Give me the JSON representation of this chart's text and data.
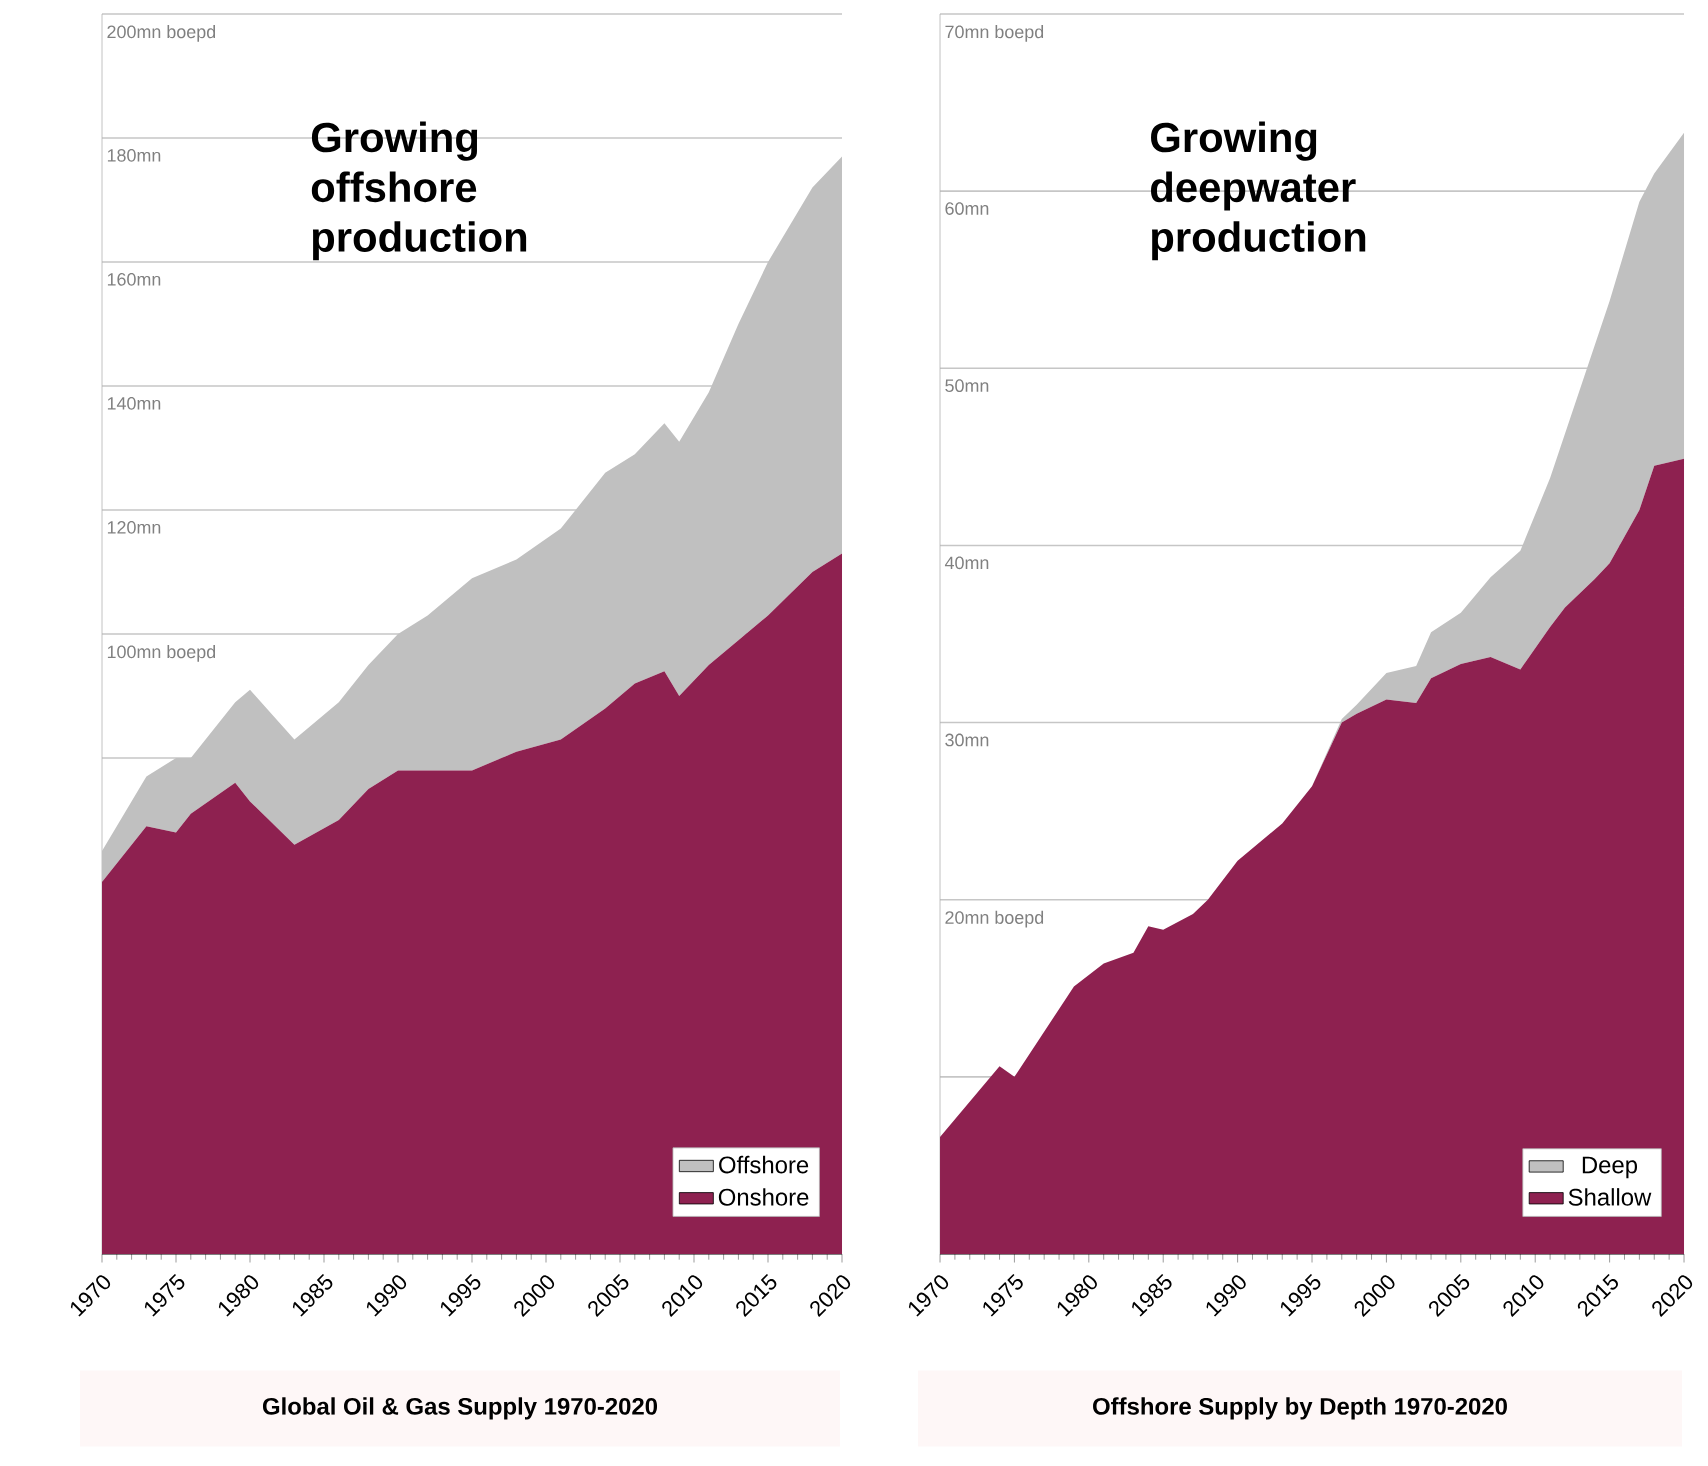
{
  "chart_data": [
    {
      "type": "area",
      "stacked": true,
      "title": "Global Oil & Gas Supply 1970-2020",
      "annotations": [
        "Growing offshore production"
      ],
      "x": [
        1970,
        1973,
        1975,
        1976,
        1979,
        1980,
        1983,
        1986,
        1988,
        1990,
        1992,
        1995,
        1998,
        2001,
        2004,
        2006,
        2008,
        2009,
        2011,
        2013,
        2015,
        2018,
        2020
      ],
      "series": [
        {
          "name": "Onshore",
          "color": "#8e2150",
          "values": [
            60,
            69,
            68,
            71,
            76,
            73,
            66,
            70,
            75,
            78,
            78,
            78,
            81,
            83,
            88,
            92,
            94,
            90,
            95,
            99,
            103,
            110,
            113
          ]
        },
        {
          "name": "Offshore",
          "color": "#c0c0c0",
          "values": [
            5,
            8,
            12,
            9,
            13,
            18,
            17,
            19,
            20,
            22,
            25,
            31,
            31,
            34,
            38,
            37,
            40,
            41,
            44,
            51,
            57,
            62,
            64
          ]
        }
      ],
      "xlim": [
        1970,
        2020
      ],
      "xticks": [
        1970,
        1975,
        1980,
        1985,
        1990,
        1995,
        2000,
        2005,
        2010,
        2015,
        2020
      ],
      "ylim": [
        0,
        200
      ],
      "yticks": [
        {
          "value": 0,
          "label": null
        },
        {
          "value": 20,
          "label": null
        },
        {
          "value": 40,
          "label": null
        },
        {
          "value": 60,
          "label": null
        },
        {
          "value": 80,
          "label": null
        },
        {
          "value": 100,
          "label": "100mn boepd"
        },
        {
          "value": 120,
          "label": "120mn"
        },
        {
          "value": 140,
          "label": "140mn"
        },
        {
          "value": 160,
          "label": "160mn"
        },
        {
          "value": 180,
          "label": "180mn"
        },
        {
          "value": 200,
          "label": "200mn boepd"
        }
      ],
      "grid": "y",
      "legend": "bottom right"
    },
    {
      "type": "area",
      "stacked": true,
      "title": "Offshore Supply by Depth 1970-2020",
      "annotations": [
        "Growing deepwater production"
      ],
      "x": [
        1970,
        1974,
        1975,
        1979,
        1981,
        1983,
        1984,
        1985,
        1987,
        1988,
        1990,
        1993,
        1995,
        1997,
        1998,
        2000,
        2002,
        2003,
        2005,
        2007,
        2009,
        2011,
        2012,
        2014,
        2015,
        2017,
        2018,
        2020
      ],
      "series": [
        {
          "name": "Shallow",
          "color": "#8e2150",
          "values": [
            6.6,
            10.6,
            10,
            15.1,
            16.4,
            17,
            18.5,
            18.3,
            19.2,
            20,
            22.2,
            24.3,
            26.4,
            30,
            30.5,
            31.3,
            31.1,
            32.5,
            33.3,
            33.7,
            33,
            35.4,
            36.5,
            38.1,
            39,
            42,
            44.5,
            44.9
          ]
        },
        {
          "name": "Deep",
          "color": "#c0c0c0",
          "values": [
            0,
            0,
            0,
            0,
            0,
            0,
            0,
            0,
            0,
            0,
            0,
            0,
            0,
            0.2,
            0.5,
            1.5,
            2.1,
            2.6,
            2.9,
            4.5,
            6.7,
            8.4,
            9.8,
            13.2,
            14.8,
            17.4,
            16.5,
            18.4
          ]
        }
      ],
      "xlim": [
        1970,
        2020
      ],
      "xticks": [
        1970,
        1975,
        1980,
        1985,
        1990,
        1995,
        2000,
        2005,
        2010,
        2015,
        2020
      ],
      "ylim": [
        0,
        70
      ],
      "yticks": [
        {
          "value": 0,
          "label": null
        },
        {
          "value": 10,
          "label": null
        },
        {
          "value": 20,
          "label": "20mn boepd"
        },
        {
          "value": 30,
          "label": "30mn"
        },
        {
          "value": 40,
          "label": "40mn"
        },
        {
          "value": 50,
          "label": "50mn"
        },
        {
          "value": 60,
          "label": "60mn"
        },
        {
          "value": 70,
          "label": "70mn boepd"
        }
      ],
      "grid": "y",
      "legend": "bottom right"
    }
  ]
}
